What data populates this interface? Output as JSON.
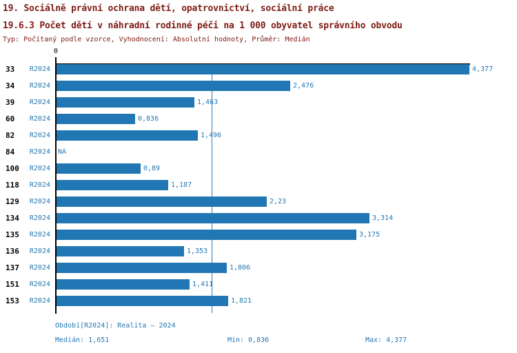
{
  "header": {
    "title_line1": "19. Sociálně právní ochrana dětí, opatrovnictví, sociální práce",
    "title_line2": "19.6.3 Počet dětí v náhradní rodinné péči na 1 000 obyvatel správního obvodu",
    "subtitle": "Typ: Počítaný podle vzorce, Vyhodnocení: Absolutní hodnoty, Průměr: Medián"
  },
  "chart_data": {
    "type": "bar",
    "orientation": "horizontal",
    "grid": false,
    "legend_position": "none",
    "x_axis": {
      "tick_labels": [
        "0"
      ],
      "range": [
        0,
        4.377
      ]
    },
    "median_line": {
      "shown": true,
      "value": 1.651
    },
    "series_name": "R2024",
    "rows": [
      {
        "category": "33",
        "period": "R2024",
        "value": 4.377,
        "label": "4,377"
      },
      {
        "category": "34",
        "period": "R2024",
        "value": 2.476,
        "label": "2,476"
      },
      {
        "category": "39",
        "period": "R2024",
        "value": 1.463,
        "label": "1,463"
      },
      {
        "category": "60",
        "period": "R2024",
        "value": 0.836,
        "label": "0,836"
      },
      {
        "category": "82",
        "period": "R2024",
        "value": 1.496,
        "label": "1,496"
      },
      {
        "category": "84",
        "period": "R2024",
        "value": null,
        "label": "NA"
      },
      {
        "category": "100",
        "period": "R2024",
        "value": 0.89,
        "label": "0,89"
      },
      {
        "category": "118",
        "period": "R2024",
        "value": 1.187,
        "label": "1,187"
      },
      {
        "category": "129",
        "period": "R2024",
        "value": 2.23,
        "label": "2,23"
      },
      {
        "category": "134",
        "period": "R2024",
        "value": 3.314,
        "label": "3,314"
      },
      {
        "category": "135",
        "period": "R2024",
        "value": 3.175,
        "label": "3,175"
      },
      {
        "category": "136",
        "period": "R2024",
        "value": 1.353,
        "label": "1,353"
      },
      {
        "category": "137",
        "period": "R2024",
        "value": 1.806,
        "label": "1,806"
      },
      {
        "category": "151",
        "period": "R2024",
        "value": 1.411,
        "label": "1,411"
      },
      {
        "category": "153",
        "period": "R2024",
        "value": 1.821,
        "label": "1,821"
      }
    ]
  },
  "footer": {
    "period_label": "Období[R2024]: Realita – 2024",
    "median_label": "Medián: 1,651",
    "min_label": "Min: 0,836",
    "max_label": "Max: 4,377"
  },
  "colors": {
    "bar": "#2177b3",
    "accent_text": "#2177b3",
    "title_text": "#7d1a12",
    "axis": "#000000",
    "background": "#ffffff"
  }
}
